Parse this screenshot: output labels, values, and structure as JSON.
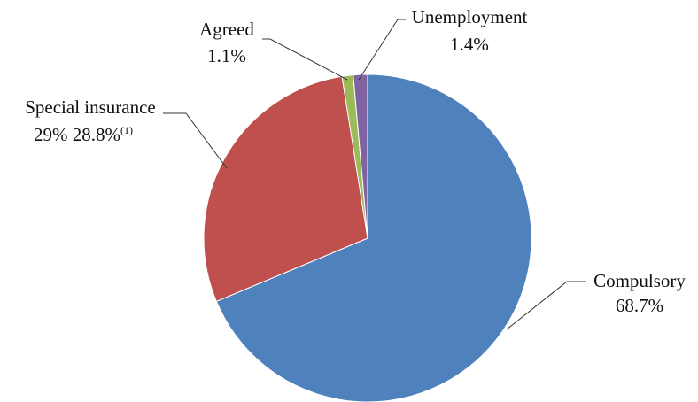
{
  "chart_data": {
    "type": "pie",
    "start_angle_deg": 0,
    "direction": "clockwise",
    "slices": [
      {
        "label": "Compulsory",
        "value": 68.7,
        "display": "68.7%",
        "color": "#4f81bd"
      },
      {
        "label": "Special insurance",
        "value": 28.8,
        "display": "29% 28.8%",
        "footnote": "(1)",
        "color": "#c0504d"
      },
      {
        "label": "Agreed",
        "value": 1.1,
        "display": "1.1%",
        "color": "#9bbb59"
      },
      {
        "label": "Unemployment",
        "value": 1.4,
        "display": "1.4%",
        "color": "#8064a2"
      }
    ]
  }
}
